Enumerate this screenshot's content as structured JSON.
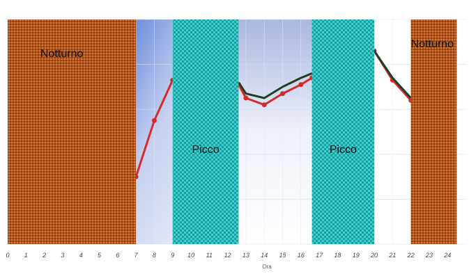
{
  "chart_data": {
    "type": "line",
    "xlabel": "Ora",
    "x_ticks": [
      "0",
      "1",
      "2",
      "3",
      "4",
      "5",
      "6",
      "7",
      "8",
      "9",
      "10",
      "11",
      "12",
      "13",
      "14",
      "15",
      "16",
      "17",
      "18",
      "19",
      "20",
      "21",
      "22",
      "23",
      "24"
    ],
    "xlim": [
      0,
      24
    ],
    "ylim": [
      0,
      100
    ],
    "grid": true,
    "bands": [
      {
        "label": "Notturno",
        "start": 0,
        "end": 7,
        "color": "#b5541c",
        "pattern": "dotted"
      },
      {
        "label": "Picco",
        "start": 9,
        "end": 12.6,
        "color": "#2ec4c0",
        "pattern": "checker"
      },
      {
        "label": "Picco",
        "start": 16.6,
        "end": 20,
        "color": "#2ec4c0",
        "pattern": "checker"
      },
      {
        "label": "Notturno",
        "start": 22,
        "end": 24.5,
        "color": "#b5541c",
        "pattern": "dotted"
      }
    ],
    "series": [
      {
        "color": "#d42a2a",
        "x": [
          7,
          8,
          9,
          12.6,
          13,
          14,
          15,
          16,
          16.6,
          20,
          21,
          22
        ],
        "y": [
          30,
          55,
          73,
          71,
          65,
          62,
          67,
          71,
          74,
          86,
          73,
          64
        ]
      },
      {
        "color": "#1f3f24",
        "x": [
          12.6,
          13,
          14,
          15,
          16,
          16.6,
          20,
          21,
          22
        ],
        "y": [
          72,
          67,
          65,
          70,
          74,
          76,
          86,
          74,
          65
        ]
      }
    ]
  }
}
